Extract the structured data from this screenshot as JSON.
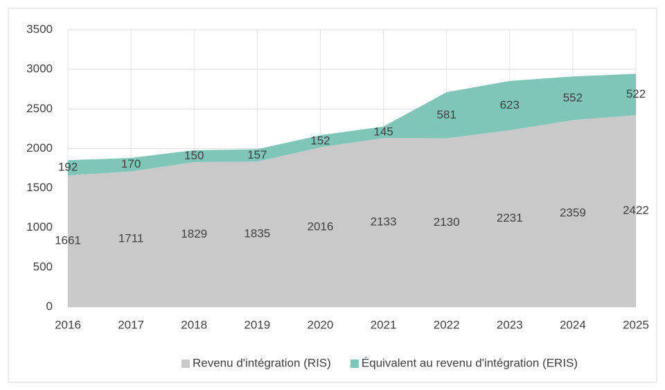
{
  "chart_data": {
    "type": "stacked_area",
    "categories": [
      "2016",
      "2017",
      "2018",
      "2019",
      "2020",
      "2021",
      "2022",
      "2023",
      "2024",
      "2025"
    ],
    "series": [
      {
        "name": "Revenu d'intégration (RIS)",
        "color": "#c9c9c9",
        "values": [
          1661,
          1711,
          1829,
          1835,
          2016,
          2133,
          2130,
          2231,
          2359,
          2422
        ]
      },
      {
        "name": "Équivalent au revenu d'intégration (ERIS)",
        "color": "#7fc5b8",
        "values": [
          192,
          170,
          150,
          157,
          152,
          145,
          581,
          623,
          552,
          522
        ]
      }
    ],
    "ylim": [
      0,
      3500
    ],
    "yticks": [
      0,
      500,
      1000,
      1500,
      2000,
      2500,
      3000,
      3500
    ],
    "grid": true,
    "legend": "bottom"
  }
}
